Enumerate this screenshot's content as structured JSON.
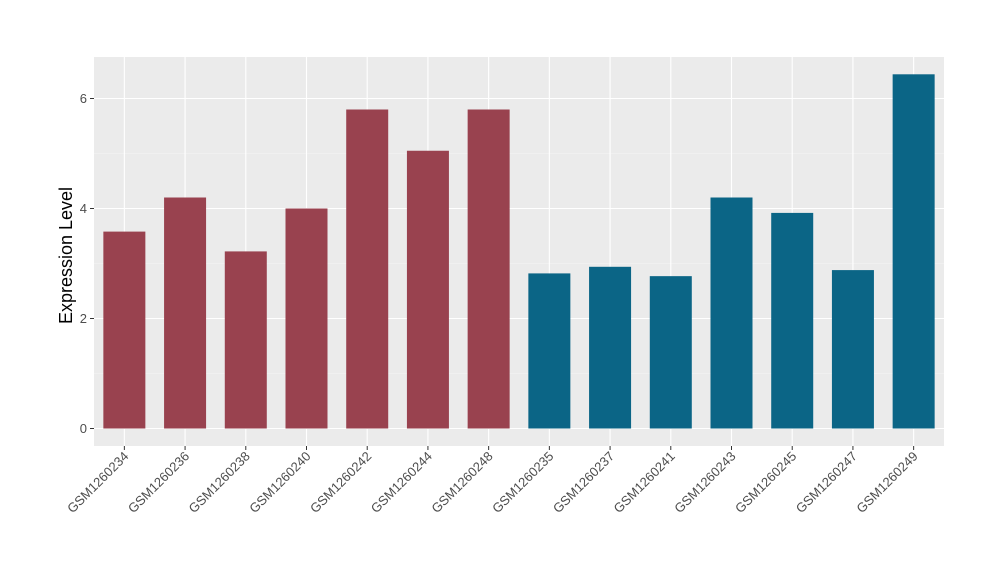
{
  "chart_data": {
    "type": "bar",
    "title": "",
    "xlabel": "",
    "ylabel": "Expression Level",
    "ylim": [
      0,
      6.73
    ],
    "yticks": [
      0,
      2,
      4,
      6
    ],
    "grid": true,
    "legend": "none",
    "categories": [
      "GSM1260234",
      "GSM1260236",
      "GSM1260238",
      "GSM1260240",
      "GSM1260242",
      "GSM1260244",
      "GSM1260248",
      "GSM1260235",
      "GSM1260237",
      "GSM1260241",
      "GSM1260243",
      "GSM1260245",
      "GSM1260247",
      "GSM1260249"
    ],
    "values": [
      3.58,
      4.2,
      3.22,
      4.0,
      5.8,
      5.05,
      5.8,
      2.82,
      2.94,
      2.77,
      4.2,
      3.92,
      2.88,
      6.44
    ],
    "bar_colors": [
      "#99424F",
      "#99424F",
      "#99424F",
      "#99424F",
      "#99424F",
      "#99424F",
      "#99424F",
      "#0B6586",
      "#0B6586",
      "#0B6586",
      "#0B6586",
      "#0B6586",
      "#0B6586",
      "#0B6586"
    ]
  },
  "style": {
    "panel_bg": "#EBEBEB",
    "grid_major": "#FFFFFF",
    "grid_minor": "#F5F5F5",
    "tick_color": "#333333"
  }
}
